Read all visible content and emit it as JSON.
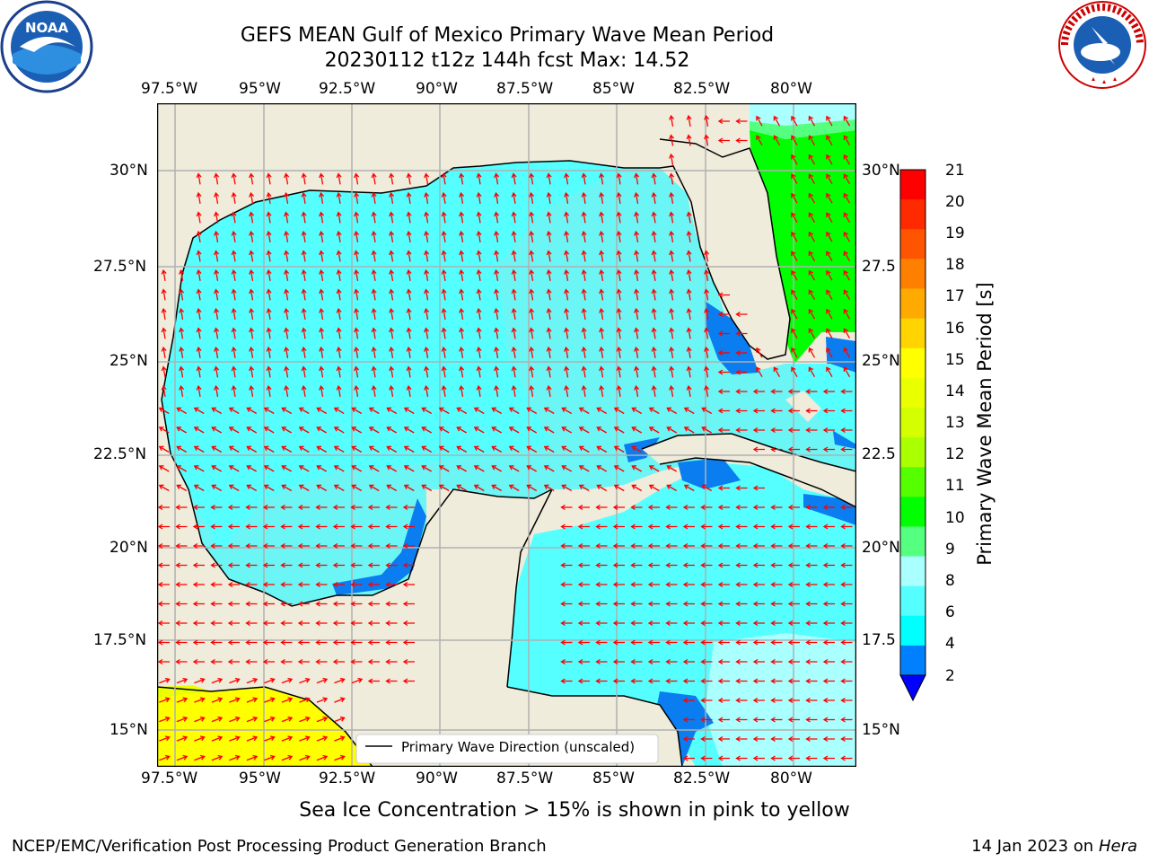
{
  "title": {
    "line1": "GEFS MEAN Gulf of Mexico Primary Wave Mean Period",
    "line2": "20230112 t12z 144h fcst   Max: 14.52"
  },
  "axes": {
    "lon_ticks": [
      "97.5°W",
      "95°W",
      "92.5°W",
      "90°W",
      "87.5°W",
      "85°W",
      "82.5°W",
      "80°W"
    ],
    "lat_ticks_left": [
      "30°N",
      "27.5°N",
      "25°N",
      "22.5°N",
      "20°N",
      "17.5°N",
      "15°N"
    ],
    "lat_ticks_right": [
      "30°N",
      "27.5",
      "25°N",
      "22.5",
      "20°N",
      "17.5",
      "15°N"
    ]
  },
  "legend": {
    "label": "Primary Wave Direction (unscaled)"
  },
  "colorbar": {
    "label": "Primary Wave Mean Period [s]",
    "ticks": [
      "21",
      "20",
      "19",
      "18",
      "17",
      "16",
      "15",
      "14",
      "13",
      "12",
      "11",
      "10",
      "9",
      "8",
      "6",
      "4",
      "2"
    ],
    "colors": [
      "#ff0000",
      "#ff2a00",
      "#ff5500",
      "#ff8000",
      "#ffaa00",
      "#ffd400",
      "#ffff00",
      "#eaff00",
      "#d4ff00",
      "#aaff00",
      "#55ff00",
      "#00ff00",
      "#55ff80",
      "#aaffff",
      "#55ffff",
      "#00ffff",
      "#0080ff"
    ],
    "extend_color": "#0000ff"
  },
  "note": "Sea Ice Concentration > 15% is shown in pink to yellow",
  "footer": {
    "left": "NCEP/EMC/Verification Post Processing Product Generation Branch",
    "date": "14 Jan 2023 on ",
    "machine": "Hera"
  },
  "logos": {
    "noaa": "NOAA",
    "nws": "NATIONAL WEATHER SERVICE"
  }
}
